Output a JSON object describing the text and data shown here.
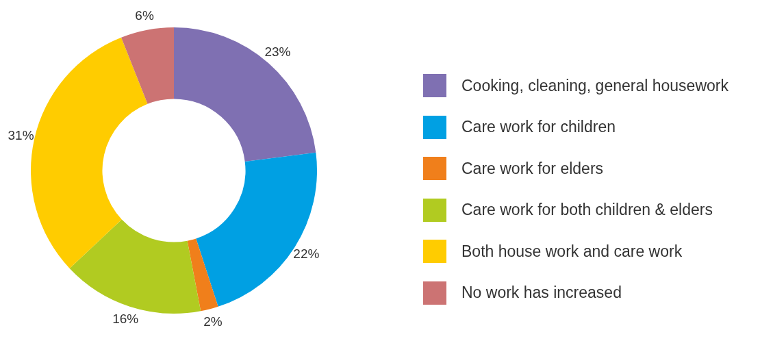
{
  "chart_data": {
    "type": "donut",
    "categories": [
      "Cooking, cleaning, general housework",
      "Care work for children",
      "Care work for elders",
      "Care work for both children & elders",
      "Both house work and care work",
      "No work has increased"
    ],
    "values": [
      23,
      22,
      2,
      16,
      31,
      6
    ],
    "colors": [
      "#7f70b2",
      "#00a0e3",
      "#f07f1b",
      "#b1cb21",
      "#ffcc00",
      "#cc7373"
    ],
    "value_labels": [
      "23%",
      "22%",
      "2%",
      "16%",
      "31%",
      "6%"
    ],
    "legend": "right"
  }
}
